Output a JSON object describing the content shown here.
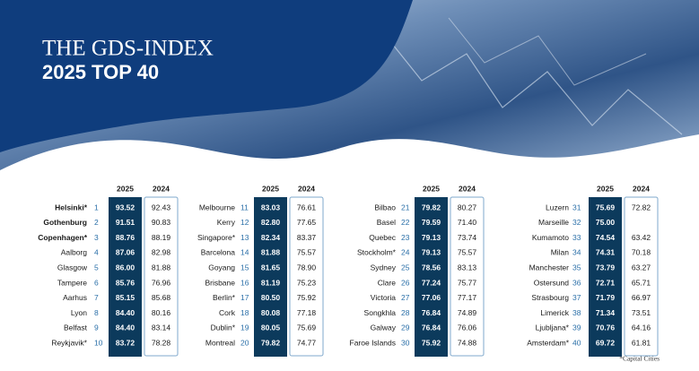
{
  "header": {
    "title": "THE GDS-INDEX",
    "subtitle": "2025 TOP 40"
  },
  "columns": {
    "current": "2025",
    "previous": "2024"
  },
  "groups": [
    {
      "rows": [
        {
          "city": "Helsinki*",
          "rank": 1,
          "score_2025": "93.52",
          "score_2024": "92.43"
        },
        {
          "city": "Gothenburg",
          "rank": 2,
          "score_2025": "91.51",
          "score_2024": "90.83"
        },
        {
          "city": "Copenhagen*",
          "rank": 3,
          "score_2025": "88.76",
          "score_2024": "88.19"
        },
        {
          "city": "Aalborg",
          "rank": 4,
          "score_2025": "87.06",
          "score_2024": "82.98"
        },
        {
          "city": "Glasgow",
          "rank": 5,
          "score_2025": "86.00",
          "score_2024": "81.88"
        },
        {
          "city": "Tampere",
          "rank": 6,
          "score_2025": "85.76",
          "score_2024": "76.96"
        },
        {
          "city": "Aarhus",
          "rank": 7,
          "score_2025": "85.15",
          "score_2024": "85.68"
        },
        {
          "city": "Lyon",
          "rank": 8,
          "score_2025": "84.40",
          "score_2024": "80.16"
        },
        {
          "city": "Belfast",
          "rank": 9,
          "score_2025": "84.40",
          "score_2024": "83.14"
        },
        {
          "city": "Reykjavik*",
          "rank": 10,
          "score_2025": "83.72",
          "score_2024": "78.28"
        }
      ]
    },
    {
      "rows": [
        {
          "city": "Melbourne",
          "rank": 11,
          "score_2025": "83.03",
          "score_2024": "76.61"
        },
        {
          "city": "Kerry",
          "rank": 12,
          "score_2025": "82.80",
          "score_2024": "77.65"
        },
        {
          "city": "Singapore*",
          "rank": 13,
          "score_2025": "82.34",
          "score_2024": "83.37"
        },
        {
          "city": "Barcelona",
          "rank": 14,
          "score_2025": "81.88",
          "score_2024": "75.57"
        },
        {
          "city": "Goyang",
          "rank": 15,
          "score_2025": "81.65",
          "score_2024": "78.90"
        },
        {
          "city": "Brisbane",
          "rank": 16,
          "score_2025": "81.19",
          "score_2024": "75.23"
        },
        {
          "city": "Berlin*",
          "rank": 17,
          "score_2025": "80.50",
          "score_2024": "75.92"
        },
        {
          "city": "Cork",
          "rank": 18,
          "score_2025": "80.08",
          "score_2024": "77.18"
        },
        {
          "city": "Dublin*",
          "rank": 19,
          "score_2025": "80.05",
          "score_2024": "75.69"
        },
        {
          "city": "Montreal",
          "rank": 20,
          "score_2025": "79.82",
          "score_2024": "74.77"
        }
      ]
    },
    {
      "rows": [
        {
          "city": "Bilbao",
          "rank": 21,
          "score_2025": "79.82",
          "score_2024": "80.27"
        },
        {
          "city": "Basel",
          "rank": 22,
          "score_2025": "79.59",
          "score_2024": "71.40"
        },
        {
          "city": "Quebec",
          "rank": 23,
          "score_2025": "79.13",
          "score_2024": "73.74"
        },
        {
          "city": "Stockholm*",
          "rank": 24,
          "score_2025": "79.13",
          "score_2024": "75.57"
        },
        {
          "city": "Sydney",
          "rank": 25,
          "score_2025": "78.56",
          "score_2024": "83.13"
        },
        {
          "city": "Clare",
          "rank": 26,
          "score_2025": "77.24",
          "score_2024": "75.77"
        },
        {
          "city": "Victoria",
          "rank": 27,
          "score_2025": "77.06",
          "score_2024": "77.17"
        },
        {
          "city": "Songkhla",
          "rank": 28,
          "score_2025": "76.84",
          "score_2024": "74.89"
        },
        {
          "city": "Galway",
          "rank": 29,
          "score_2025": "76.84",
          "score_2024": "76.06"
        },
        {
          "city": "Faroe Islands",
          "rank": 30,
          "score_2025": "75.92",
          "score_2024": "74.88"
        }
      ]
    },
    {
      "rows": [
        {
          "city": "Luzern",
          "rank": 31,
          "score_2025": "75.69",
          "score_2024": "72.82"
        },
        {
          "city": "Marseille",
          "rank": 32,
          "score_2025": "75.00",
          "score_2024": null
        },
        {
          "city": "Kumamoto",
          "rank": 33,
          "score_2025": "74.54",
          "score_2024": "63.42"
        },
        {
          "city": "Milan",
          "rank": 34,
          "score_2025": "74.31",
          "score_2024": "70.18"
        },
        {
          "city": "Manchester",
          "rank": 35,
          "score_2025": "73.79",
          "score_2024": "63.27"
        },
        {
          "city": "Ostersund",
          "rank": 36,
          "score_2025": "72.71",
          "score_2024": "65.71"
        },
        {
          "city": "Strasbourg",
          "rank": 37,
          "score_2025": "71.79",
          "score_2024": "66.97"
        },
        {
          "city": "Limerick",
          "rank": 38,
          "score_2025": "71.34",
          "score_2024": "73.51"
        },
        {
          "city": "Ljubljana*",
          "rank": 39,
          "score_2025": "70.76",
          "score_2024": "64.16"
        },
        {
          "city": "Amsterdam*",
          "rank": 40,
          "score_2025": "69.72",
          "score_2024": "61.81"
        }
      ]
    }
  ],
  "footnote": "*Capital Cities"
}
